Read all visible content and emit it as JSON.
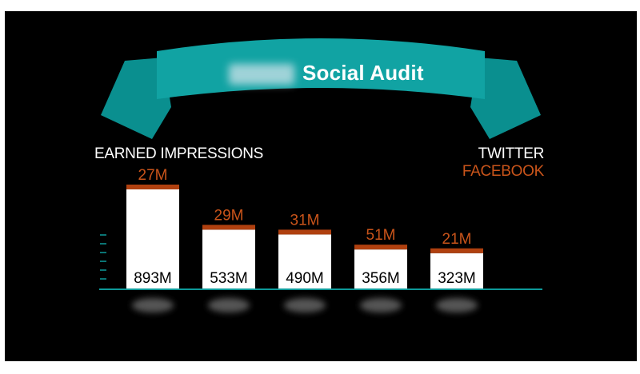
{
  "banner": {
    "title": "Social Audit"
  },
  "chart_data": {
    "type": "bar",
    "title": "EARNED IMPRESSIONS",
    "stacked": true,
    "legend_position": "top-right",
    "categories": [
      "",
      "",
      "",
      "",
      ""
    ],
    "series": [
      {
        "name": "TWITTER",
        "values": [
          893,
          533,
          490,
          356,
          323
        ],
        "labels": [
          "893M",
          "533M",
          "490M",
          "356M",
          "323M"
        ],
        "color": "#ffffff"
      },
      {
        "name": "FACEBOOK",
        "values": [
          27,
          29,
          31,
          51,
          21
        ],
        "labels": [
          "27M",
          "29M",
          "31M",
          "51M",
          "21M"
        ],
        "color": "#b0400f"
      }
    ],
    "label_colors": {
      "twitter": "#000000",
      "facebook": "#c9541a"
    },
    "accent": "#0e9a9a"
  }
}
